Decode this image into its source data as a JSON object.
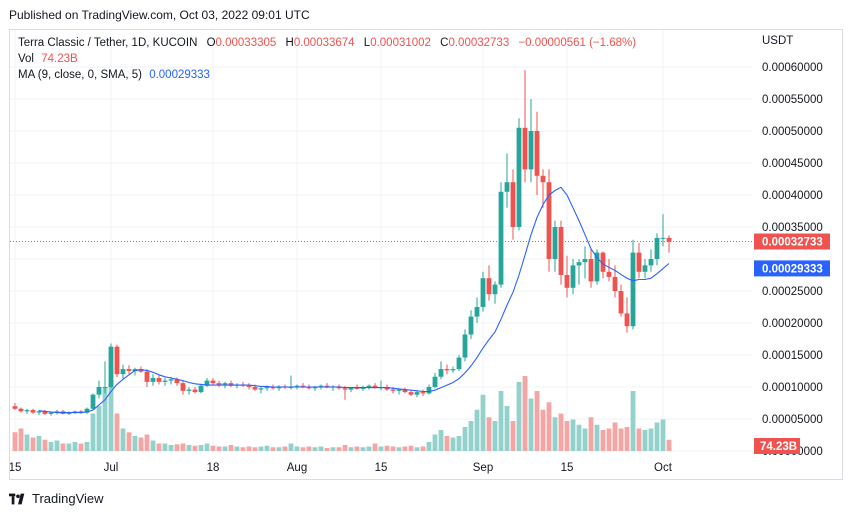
{
  "header": {
    "published": "Published on TradingView.com, Oct 03, 2022 09:01 UTC"
  },
  "legend": {
    "symbol": "Terra Classic / Tether, 1D, KUCOIN",
    "open_key": "O",
    "open": "0.00033305",
    "high_key": "H",
    "high": "0.00033674",
    "low_key": "L",
    "low": "0.00031002",
    "close_key": "C",
    "close": "0.00032733",
    "change": "−0.00000561 (−1.68%)",
    "vol_key": "Vol",
    "vol": "74.23B",
    "ma_key": "MA (9, close, 0, SMA, 5)",
    "ma": "0.00029333"
  },
  "footer": {
    "brand": "TradingView"
  },
  "colors": {
    "up": "#26a69a",
    "down": "#ef5350",
    "up_volume": "#93d2cc",
    "down_volume": "#f5a6a4",
    "ma": "#2962ff",
    "grid": "#f0f3fa"
  },
  "chart_data": {
    "type": "candlestick",
    "currency": "USDT",
    "x_labels": [
      {
        "label": "15",
        "index": 0
      },
      {
        "label": "Jul",
        "index": 16
      },
      {
        "label": "18",
        "index": 33
      },
      {
        "label": "Aug",
        "index": 47
      },
      {
        "label": "15",
        "index": 61
      },
      {
        "label": "Sep",
        "index": 78
      },
      {
        "label": "15",
        "index": 92
      },
      {
        "label": "Oct",
        "index": 108
      }
    ],
    "y_ticks": [
      "0.00060000",
      "0.00055000",
      "0.00050000",
      "0.00045000",
      "0.00040000",
      "0.00035000",
      "0.00025000",
      "0.00020000",
      "0.00015000",
      "0.00010000",
      "0.00005000",
      "0.00000000"
    ],
    "y_range": [
      0,
      0.00064
    ],
    "last_price_label": "0.00032733",
    "ma_label": "0.00029333",
    "volume_label": "74.23B",
    "volume_max": 1.0,
    "candles": [
      [
        7e-05,
        7.5e-05,
        6.4e-05,
        6.6e-05
      ],
      [
        6.6e-05,
        6.8e-05,
        6e-05,
        6.2e-05
      ],
      [
        6.2e-05,
        6.6e-05,
        5.8e-05,
        6.4e-05
      ],
      [
        6.4e-05,
        6.6e-05,
        5.8e-05,
        6e-05
      ],
      [
        6e-05,
        6.4e-05,
        5.6e-05,
        6.2e-05
      ],
      [
        6.2e-05,
        6.4e-05,
        5.6e-05,
        5.8e-05
      ],
      [
        5.8e-05,
        6.2e-05,
        5.5e-05,
        6e-05
      ],
      [
        6e-05,
        6.4e-05,
        5.7e-05,
        6.2e-05
      ],
      [
        6.2e-05,
        6.4e-05,
        5.7e-05,
        5.8e-05
      ],
      [
        5.8e-05,
        6.2e-05,
        5.6e-05,
        6e-05
      ],
      [
        6e-05,
        6.3e-05,
        5.8e-05,
        6.2e-05
      ],
      [
        6.2e-05,
        6.4e-05,
        5.8e-05,
        6e-05
      ],
      [
        6e-05,
        6.8e-05,
        5.8e-05,
        6.6e-05
      ],
      [
        6.6e-05,
        9e-05,
        6.4e-05,
        8.8e-05
      ],
      [
        8.8e-05,
        0.00011,
        8.2e-05,
        0.0001
      ],
      [
        0.0001,
        0.00014,
        9e-05,
        0.0001
      ],
      [
        0.0001,
        0.000168,
        9.8e-05,
        0.000163
      ],
      [
        0.000163,
        0.000166,
        0.000115,
        0.00012
      ],
      [
        0.00012,
        0.000135,
        0.000112,
        0.000128
      ],
      [
        0.000128,
        0.000134,
        0.00012,
        0.000125
      ],
      [
        0.000125,
        0.00013,
        0.000118,
        0.000128
      ],
      [
        0.000128,
        0.000132,
        0.000122,
        0.000124
      ],
      [
        0.000124,
        0.000128,
        0.0001,
        0.000108
      ],
      [
        0.000108,
        0.00012,
        0.000102,
        0.000114
      ],
      [
        0.000114,
        0.000118,
        0.000104,
        0.000108
      ],
      [
        0.000108,
        0.000114,
        0.000102,
        0.00011
      ],
      [
        0.00011,
        0.000116,
        0.000104,
        0.000112
      ],
      [
        0.000112,
        0.000115,
        0.000102,
        0.000106
      ],
      [
        0.000106,
        0.00011,
        8.8e-05,
        9.4e-05
      ],
      [
        9.4e-05,
        0.0001,
        8.8e-05,
        9.6e-05
      ],
      [
        9.6e-05,
        0.0001,
        9e-05,
        9.2e-05
      ],
      [
        9.2e-05,
        0.000105,
        9e-05,
        0.000102
      ],
      [
        0.000102,
        0.000114,
        0.0001,
        0.00011
      ],
      [
        0.00011,
        0.000114,
        0.000103,
        0.000106
      ],
      [
        0.000106,
        0.00011,
        0.0001,
        0.000104
      ],
      [
        0.000104,
        0.000108,
        9.8e-05,
        0.000106
      ],
      [
        0.000106,
        0.00011,
        0.0001,
        0.000102
      ],
      [
        0.000102,
        0.000106,
        9.8e-05,
        0.000104
      ],
      [
        0.000104,
        0.000108,
        0.0001,
        0.000102
      ],
      [
        0.000102,
        0.000106,
        9.6e-05,
        0.0001
      ],
      [
        0.0001,
        0.000104,
        9.4e-05,
        9.6e-05
      ],
      [
        9.6e-05,
        0.0001,
        9e-05,
        9.8e-05
      ],
      [
        9.8e-05,
        0.000102,
        9.4e-05,
        0.0001
      ],
      [
        0.0001,
        0.000104,
        9.6e-05,
        9.8e-05
      ],
      [
        9.8e-05,
        0.000103,
        9.4e-05,
        0.000101
      ],
      [
        0.000101,
        0.000104,
        9.7e-05,
        9.9e-05
      ],
      [
        9.9e-05,
        0.000118,
        9.6e-05,
        0.0001
      ],
      [
        0.0001,
        0.000104,
        9.6e-05,
        0.000102
      ],
      [
        0.000102,
        0.000106,
        9.8e-05,
        0.0001
      ],
      [
        0.0001,
        0.000104,
        9.6e-05,
        9.8e-05
      ],
      [
        9.8e-05,
        0.000102,
        9.4e-05,
        0.0001
      ],
      [
        0.0001,
        0.000104,
        9.6e-05,
        0.000102
      ],
      [
        0.000102,
        0.000106,
        9.8e-05,
        9.9e-05
      ],
      [
        9.9e-05,
        0.000103,
        9.4e-05,
        0.000101
      ],
      [
        0.000101,
        0.000104,
        9.6e-05,
        9.8e-05
      ],
      [
        9.8e-05,
        0.000102,
        8e-05,
        9.6e-05
      ],
      [
        9.6e-05,
        0.0001,
        9.2e-05,
        0.0001
      ],
      [
        0.0001,
        0.000104,
        9.6e-05,
        9.7e-05
      ],
      [
        9.7e-05,
        0.000102,
        9.4e-05,
        0.0001
      ],
      [
        0.0001,
        0.000104,
        9.6e-05,
        0.000102
      ],
      [
        0.000102,
        0.000106,
        9.8e-05,
        9.8e-05
      ],
      [
        9.8e-05,
        0.00011,
        9.5e-05,
        0.0001
      ],
      [
        0.0001,
        0.000104,
        9.4e-05,
        9.6e-05
      ],
      [
        9.6e-05,
        0.0001,
        9e-05,
        9.4e-05
      ],
      [
        9.4e-05,
        9.8e-05,
        8.8e-05,
        9.6e-05
      ],
      [
        9.6e-05,
        9.9e-05,
        9e-05,
        9.2e-05
      ],
      [
        9.2e-05,
        9.6e-05,
        8.6e-05,
        8.8e-05
      ],
      [
        8.8e-05,
        9.4e-05,
        8.4e-05,
        9.2e-05
      ],
      [
        9.2e-05,
        9.6e-05,
        8.6e-05,
        9e-05
      ],
      [
        9e-05,
        0.000104,
        8.8e-05,
        0.0001
      ],
      [
        0.0001,
        0.000122,
        9.8e-05,
        0.000116
      ],
      [
        0.000116,
        0.00014,
        0.000112,
        0.000128
      ],
      [
        0.000128,
        0.000135,
        0.00012,
        0.000126
      ],
      [
        0.000126,
        0.000132,
        0.000122,
        0.000128
      ],
      [
        0.000128,
        0.00015,
        0.000125,
        0.000146
      ],
      [
        0.000146,
        0.00019,
        0.00014,
        0.000182
      ],
      [
        0.000182,
        0.00022,
        0.000175,
        0.00021
      ],
      [
        0.00021,
        0.00024,
        0.0002,
        0.000225
      ],
      [
        0.000225,
        0.00028,
        0.000218,
        0.00027
      ],
      [
        0.00027,
        0.00029,
        0.000235,
        0.000245
      ],
      [
        0.000245,
        0.000265,
        0.00023,
        0.00026
      ],
      [
        0.00026,
        0.00042,
        0.000255,
        0.000405
      ],
      [
        0.000405,
        0.000465,
        0.00038,
        0.00042
      ],
      [
        0.00042,
        0.00044,
        0.00033,
        0.00035
      ],
      [
        0.00035,
        0.00052,
        0.000345,
        0.000505
      ],
      [
        0.000505,
        0.000595,
        0.00042,
        0.00044
      ],
      [
        0.00044,
        0.00055,
        0.00042,
        0.0005
      ],
      [
        0.0005,
        0.00053,
        0.0004,
        0.00043
      ],
      [
        0.00043,
        0.00044,
        0.00038,
        0.00042
      ],
      [
        0.00042,
        0.00044,
        0.00028,
        0.0003
      ],
      [
        0.0003,
        0.00036,
        0.00028,
        0.00035
      ],
      [
        0.00035,
        0.00036,
        0.00026,
        0.000275
      ],
      [
        0.000275,
        0.000305,
        0.00024,
        0.000255
      ],
      [
        0.000255,
        0.0003,
        0.000245,
        0.00029
      ],
      [
        0.00029,
        0.0003,
        0.00026,
        0.000295
      ],
      [
        0.000295,
        0.00032,
        0.00027,
        0.0003
      ],
      [
        0.0003,
        0.000315,
        0.000255,
        0.000265
      ],
      [
        0.000265,
        0.000315,
        0.00026,
        0.00031
      ],
      [
        0.00031,
        0.000312,
        0.00027,
        0.00028
      ],
      [
        0.00028,
        0.0003,
        0.000265,
        0.000272
      ],
      [
        0.000272,
        0.00029,
        0.00024,
        0.00025
      ],
      [
        0.00025,
        0.00026,
        0.00021,
        0.000215
      ],
      [
        0.000215,
        0.00024,
        0.000185,
        0.000195
      ],
      [
        0.000195,
        0.00033,
        0.00019,
        0.00031
      ],
      [
        0.00031,
        0.000325,
        0.00027,
        0.00028
      ],
      [
        0.00028,
        0.0003,
        0.00027,
        0.00029
      ],
      [
        0.00029,
        0.000315,
        0.00028,
        0.0003
      ],
      [
        0.0003,
        0.00034,
        0.00029,
        0.000333
      ],
      [
        0.000333,
        0.00037,
        0.00032,
        0.000333
      ],
      [
        0.000333,
        0.000337,
        0.00031,
        0.000327
      ]
    ],
    "volumes": [
      0.25,
      0.3,
      0.22,
      0.18,
      0.2,
      0.15,
      0.12,
      0.14,
      0.1,
      0.1,
      0.12,
      0.1,
      0.12,
      0.5,
      0.6,
      0.85,
      0.95,
      0.5,
      0.3,
      0.25,
      0.2,
      0.18,
      0.22,
      0.14,
      0.1,
      0.1,
      0.08,
      0.09,
      0.1,
      0.08,
      0.07,
      0.08,
      0.1,
      0.07,
      0.06,
      0.06,
      0.08,
      0.06,
      0.05,
      0.06,
      0.05,
      0.06,
      0.07,
      0.05,
      0.05,
      0.06,
      0.1,
      0.06,
      0.05,
      0.06,
      0.05,
      0.06,
      0.04,
      0.05,
      0.05,
      0.08,
      0.05,
      0.06,
      0.05,
      0.06,
      0.1,
      0.06,
      0.07,
      0.06,
      0.05,
      0.06,
      0.07,
      0.05,
      0.06,
      0.12,
      0.22,
      0.28,
      0.2,
      0.18,
      0.2,
      0.32,
      0.4,
      0.55,
      0.75,
      0.45,
      0.4,
      0.8,
      0.6,
      0.4,
      0.92,
      1.0,
      0.7,
      0.8,
      0.55,
      0.65,
      0.45,
      0.5,
      0.4,
      0.42,
      0.35,
      0.3,
      0.45,
      0.35,
      0.28,
      0.3,
      0.38,
      0.3,
      0.32,
      0.8,
      0.3,
      0.28,
      0.3,
      0.38,
      0.42,
      0.15
    ],
    "ma_values": [
      null,
      null,
      null,
      null,
      6.3e-05,
      6.2e-05,
      6.1e-05,
      6e-05,
      6e-05,
      6e-05,
      6e-05,
      6e-05,
      6.1e-05,
      6.4e-05,
      7.2e-05,
      8e-05,
      9.3e-05,
      0.000104,
      0.000112,
      0.000119,
      0.000126,
      0.000127,
      0.000126,
      0.000123,
      0.000119,
      0.000116,
      0.000114,
      0.000112,
      0.00011,
      0.000107,
      0.000105,
      0.000104,
      0.000103,
      0.000103,
      0.000103,
      0.000103,
      0.000103,
      0.000103,
      0.000103,
      0.000103,
      0.000102,
      0.000101,
      0.000101,
      0.0001,
      0.0001,
      0.0001,
      0.0001,
      0.0001,
      0.0001,
      0.0001,
      0.0001,
      0.0001,
      0.0001,
      0.0001,
      0.0001,
      9.9e-05,
      9.9e-05,
      9.9e-05,
      9.9e-05,
      9.9e-05,
      9.9e-05,
      9.9e-05,
      9.9e-05,
      9.8e-05,
      9.7e-05,
      9.6e-05,
      9.5e-05,
      9.4e-05,
      9.3e-05,
      9.3e-05,
      9.5e-05,
      9.9e-05,
      0.000103,
      0.000107,
      0.000113,
      0.000122,
      0.000133,
      0.000146,
      0.000161,
      0.000174,
      0.000186,
      0.000206,
      0.000228,
      0.000248,
      0.000275,
      0.000306,
      0.000338,
      0.000365,
      0.000385,
      0.0004,
      0.000407,
      0.000412,
      0.0004,
      0.00038,
      0.00036,
      0.000338,
      0.000316,
      0.000302,
      0.000292,
      0.000287,
      0.000282,
      0.000276,
      0.00027,
      0.000266,
      0.000268,
      0.000268,
      0.00027,
      0.000277,
      0.000285,
      0.000293
    ]
  }
}
